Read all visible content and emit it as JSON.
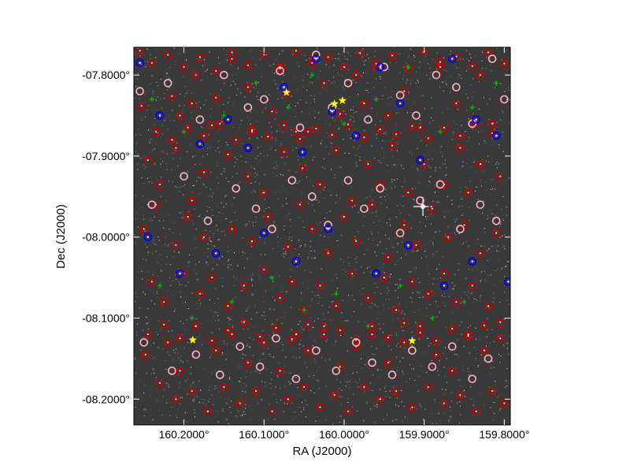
{
  "chart_data": {
    "type": "scatter",
    "title": "",
    "xlabel": "RA (J2000)",
    "ylabel": "Dec (J2000)",
    "xlim": [
      160.2625,
      159.7925
    ],
    "ylim": [
      -8.2318,
      -7.7658
    ],
    "x_reversed": true,
    "grid": false,
    "legend": "none",
    "background": "grayscale sky image",
    "x_ticks": [
      {
        "value": 160.2,
        "label": "160.2000°"
      },
      {
        "value": 160.1,
        "label": "160.1000°"
      },
      {
        "value": 160.0,
        "label": "160.0000°"
      },
      {
        "value": 159.9,
        "label": "159.9000°"
      },
      {
        "value": 159.8,
        "label": "159.8000°"
      }
    ],
    "y_ticks": [
      {
        "value": -7.8,
        "label": "-07.8000°"
      },
      {
        "value": -7.9,
        "label": "-07.9000°"
      },
      {
        "value": -8.0,
        "label": "-08.0000°"
      },
      {
        "value": -8.1,
        "label": "-08.1000°"
      },
      {
        "value": -8.2,
        "label": "-08.2000°"
      }
    ],
    "colors": {
      "red_marker": "#cc0000",
      "pink_marker": "#ffb6c1",
      "blue_marker": "#0000ff",
      "green_marker": "#00bb00",
      "yellow_marker": "#ffff00"
    },
    "series": [
      {
        "marker": "red-circle",
        "x": [
          160.253,
          160.215,
          160.205,
          160.19,
          160.185,
          160.16,
          160.165,
          160.14,
          160.12,
          160.115,
          160.09,
          160.08,
          160.072,
          160.06,
          160.04,
          160.025,
          160.005,
          159.985,
          159.975,
          159.96,
          159.945,
          159.925,
          159.905,
          159.88,
          159.86,
          159.83,
          159.815,
          160.245,
          160.23,
          160.21,
          160.19,
          160.175,
          160.145,
          160.12,
          160.1,
          160.075,
          160.052,
          160.045,
          160.03,
          160.01,
          159.99,
          159.97,
          159.955,
          159.94,
          159.92,
          159.9,
          159.875,
          159.855,
          159.845,
          159.83,
          159.805,
          160.25,
          160.235,
          160.21,
          160.195,
          160.175,
          160.16,
          160.14,
          160.115,
          160.095,
          160.07,
          160.055,
          160.04,
          160.02,
          160.0,
          159.985,
          159.965,
          159.945,
          159.925,
          159.91,
          159.89,
          159.87,
          159.85,
          159.83,
          159.81,
          160.24,
          160.225,
          160.2,
          160.18,
          160.165,
          160.145,
          160.125,
          160.1,
          160.08,
          160.065,
          160.05,
          160.03,
          160.01,
          159.99,
          159.97,
          159.95,
          159.935,
          159.915,
          159.895,
          159.875,
          159.86,
          159.84,
          159.82,
          160.248,
          160.22,
          160.205,
          160.185,
          160.16,
          160.14,
          160.12,
          160.1,
          160.08,
          160.06,
          160.045,
          160.025,
          160.005,
          159.985,
          159.965,
          159.945,
          159.925,
          159.905,
          159.885,
          159.865,
          159.845,
          159.825,
          159.805,
          160.23,
          160.21,
          160.19,
          160.17,
          160.15,
          160.13,
          160.11,
          160.09,
          160.07,
          160.05,
          160.03,
          160.012,
          159.995,
          159.975,
          159.955,
          159.935,
          159.915,
          159.895,
          159.875,
          159.855,
          159.835,
          159.815,
          159.8,
          160.255,
          160.24,
          160.22,
          160.2,
          160.18,
          160.16,
          160.14,
          160.12,
          160.1,
          160.08,
          160.06,
          160.04,
          160.02,
          160.0,
          159.98,
          159.96,
          159.94,
          159.92,
          159.9,
          159.88,
          159.86,
          159.84,
          159.82,
          159.8,
          160.235,
          160.215,
          160.195,
          160.175,
          160.155,
          160.135,
          160.115,
          160.095,
          160.075,
          160.055,
          160.035,
          160.015,
          159.995,
          159.975,
          159.955,
          159.935,
          159.915,
          159.895,
          159.875,
          159.855,
          159.835,
          159.815,
          160.245,
          160.225,
          160.205,
          160.185,
          160.165,
          160.145,
          160.125,
          160.105,
          160.085,
          160.065,
          160.045,
          160.025,
          160.005,
          159.985,
          159.965,
          159.945,
          159.925,
          159.905,
          159.885,
          159.865,
          159.845,
          159.825,
          159.805
        ],
        "y": [
          -7.838,
          -7.826,
          -7.85,
          -7.835,
          -7.8,
          -7.828,
          -7.862,
          -7.78,
          -7.815,
          -7.87,
          -7.845,
          -7.79,
          -7.822,
          -7.87,
          -7.78,
          -7.81,
          -7.848,
          -7.8,
          -7.835,
          -7.79,
          -7.85,
          -7.82,
          -7.865,
          -7.79,
          -7.835,
          -7.8,
          -7.86,
          -7.905,
          -7.935,
          -7.89,
          -7.955,
          -7.92,
          -7.898,
          -7.925,
          -7.945,
          -7.895,
          -7.915,
          -7.87,
          -7.935,
          -7.893,
          -7.955,
          -7.91,
          -7.935,
          -7.887,
          -7.945,
          -7.91,
          -7.935,
          -7.89,
          -7.945,
          -7.91,
          -7.925,
          -7.99,
          -7.96,
          -8.01,
          -7.975,
          -8.0,
          -8.02,
          -7.99,
          -8.005,
          -7.975,
          -8.012,
          -7.96,
          -7.99,
          -8.02,
          -7.975,
          -8.005,
          -7.96,
          -8.025,
          -7.985,
          -8.01,
          -7.965,
          -8.0,
          -7.985,
          -8.02,
          -7.995,
          -8.055,
          -8.08,
          -8.045,
          -8.07,
          -8.05,
          -8.085,
          -8.06,
          -8.04,
          -8.075,
          -8.055,
          -8.09,
          -8.06,
          -8.085,
          -8.045,
          -8.075,
          -8.05,
          -8.09,
          -8.055,
          -8.07,
          -8.045,
          -8.08,
          -8.06,
          -8.085,
          -8.145,
          -8.13,
          -8.165,
          -8.11,
          -8.14,
          -8.12,
          -8.155,
          -8.13,
          -8.165,
          -8.12,
          -8.14,
          -8.11,
          -8.16,
          -8.135,
          -8.12,
          -8.155,
          -8.13,
          -8.11,
          -8.145,
          -8.165,
          -8.12,
          -8.14,
          -8.105,
          -8.18,
          -8.2,
          -8.19,
          -8.215,
          -8.185,
          -8.205,
          -8.19,
          -8.215,
          -8.2,
          -8.185,
          -8.21,
          -8.195,
          -8.215,
          -8.185,
          -8.2,
          -8.19,
          -8.21,
          -8.185,
          -8.205,
          -8.195,
          -8.215,
          -8.19,
          -8.205,
          -7.77,
          -7.785,
          -7.775,
          -7.79,
          -7.778,
          -7.795,
          -7.772,
          -7.788,
          -7.775,
          -7.792,
          -7.77,
          -7.785,
          -7.778,
          -7.79,
          -7.773,
          -7.786,
          -7.776,
          -7.792,
          -7.771,
          -7.784,
          -7.777,
          -7.789,
          -7.772,
          -7.786,
          -7.87,
          -7.88,
          -7.865,
          -7.875,
          -7.86,
          -7.88,
          -7.868,
          -7.876,
          -7.862,
          -7.879,
          -7.866,
          -7.874,
          -7.861,
          -7.877,
          -7.867,
          -7.873,
          -7.863,
          -7.878,
          -7.865,
          -7.875,
          -7.86,
          -7.872,
          -8.12,
          -8.108,
          -8.125,
          -8.11,
          -8.128,
          -8.115,
          -8.105,
          -8.123,
          -8.112,
          -8.126,
          -8.108,
          -8.12,
          -8.115,
          -8.127,
          -8.11,
          -8.124,
          -8.106,
          -8.118,
          -8.128,
          -8.113,
          -8.122,
          -8.109,
          -8.125
        ]
      },
      {
        "marker": "pink-circle",
        "x": [
          160.255,
          160.22,
          160.18,
          160.15,
          160.12,
          160.1,
          160.08,
          160.055,
          160.035,
          160.015,
          159.995,
          159.97,
          159.95,
          159.93,
          159.91,
          159.885,
          159.86,
          159.84,
          159.815,
          159.8,
          160.24,
          160.2,
          160.17,
          160.135,
          160.11,
          160.09,
          160.065,
          160.04,
          160.02,
          159.995,
          159.975,
          159.955,
          159.93,
          159.905,
          159.88,
          159.855,
          159.83,
          159.81,
          160.25,
          160.215,
          160.185,
          160.155,
          160.13,
          160.105,
          160.085,
          160.06,
          160.035,
          160.01,
          159.985,
          159.965,
          159.94,
          159.915,
          159.89,
          159.865,
          159.84,
          159.82
        ],
        "y": [
          -7.82,
          -7.81,
          -7.855,
          -7.8,
          -7.84,
          -7.83,
          -7.795,
          -7.865,
          -7.775,
          -7.84,
          -7.81,
          -7.855,
          -7.79,
          -7.825,
          -7.85,
          -7.8,
          -7.815,
          -7.86,
          -7.78,
          -7.83,
          -7.96,
          -7.925,
          -7.98,
          -7.94,
          -7.965,
          -7.99,
          -7.93,
          -7.95,
          -7.985,
          -7.93,
          -7.965,
          -7.94,
          -7.995,
          -7.955,
          -7.935,
          -7.99,
          -7.96,
          -7.98,
          -8.13,
          -8.165,
          -8.145,
          -8.17,
          -8.135,
          -8.16,
          -8.125,
          -8.175,
          -8.14,
          -8.165,
          -8.13,
          -8.155,
          -8.17,
          -8.14,
          -8.16,
          -8.135,
          -8.175,
          -8.15
        ]
      },
      {
        "marker": "blue-circle",
        "x": [
          160.255,
          160.23,
          160.18,
          160.145,
          160.12,
          160.075,
          160.052,
          160.035,
          160.015,
          159.985,
          159.955,
          159.93,
          159.905,
          159.865,
          159.835,
          159.81,
          160.245,
          160.205,
          160.16,
          160.1,
          160.06,
          160.02,
          159.96,
          159.92,
          159.875,
          159.84,
          159.795
        ],
        "y": [
          -7.785,
          -7.85,
          -7.885,
          -7.855,
          -7.89,
          -7.815,
          -7.895,
          -7.78,
          -7.845,
          -7.875,
          -7.79,
          -7.835,
          -7.905,
          -7.78,
          -7.855,
          -7.875,
          -8.0,
          -8.045,
          -8.02,
          -7.995,
          -8.03,
          -7.99,
          -8.045,
          -8.01,
          -8.06,
          -8.03,
          -8.055
        ]
      },
      {
        "marker": "green-cross",
        "x": [
          160.24,
          160.2,
          160.15,
          160.11,
          160.07,
          160.04,
          160.0,
          159.96,
          159.92,
          159.88,
          159.84,
          159.81,
          160.23,
          160.19,
          160.14,
          160.09,
          160.05,
          160.01,
          159.97,
          159.93,
          159.89,
          159.85
        ],
        "y": [
          -7.83,
          -7.87,
          -7.85,
          -7.81,
          -7.84,
          -7.8,
          -7.86,
          -7.83,
          -7.79,
          -7.87,
          -7.84,
          -7.81,
          -8.06,
          -8.1,
          -8.08,
          -8.05,
          -8.09,
          -8.07,
          -8.11,
          -8.06,
          -8.1,
          -8.08
        ]
      },
      {
        "marker": "yellow-star",
        "x": [
          160.072,
          160.012,
          160.002,
          160.189,
          159.915
        ],
        "y": [
          -7.8215,
          -7.8355,
          -7.8315,
          -8.127,
          -8.128
        ]
      }
    ]
  }
}
